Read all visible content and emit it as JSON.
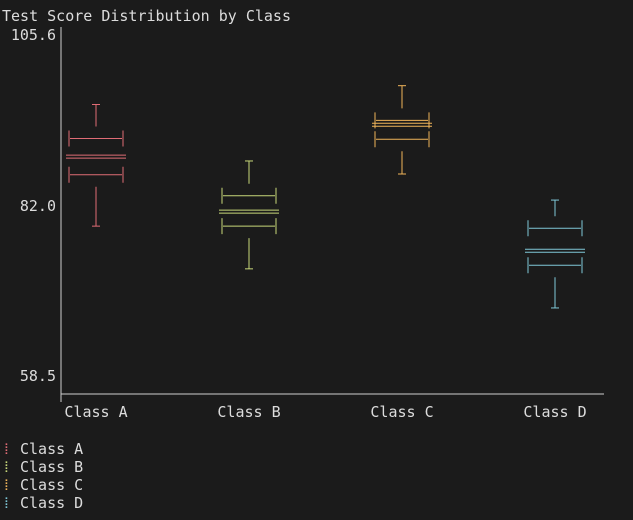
{
  "chart_data": {
    "type": "box",
    "title": "Test Score Distribution by Class",
    "categories": [
      "Class A",
      "Class B",
      "Class C",
      "Class D"
    ],
    "y_ticks": [
      "105.6",
      "82.0",
      "58.5"
    ],
    "ylim": [
      58.5,
      105.6
    ],
    "series": [
      {
        "name": "Class A",
        "color": "#e06c75",
        "min": 79.2,
        "q1": 86.3,
        "median": 88.8,
        "q3": 91.3,
        "max": 96.0
      },
      {
        "name": "Class B",
        "color": "#c8d87a",
        "min": 73.3,
        "q1": 79.2,
        "median": 81.2,
        "q3": 83.4,
        "max": 88.2
      },
      {
        "name": "Class C",
        "color": "#f0b45a",
        "min": 86.4,
        "q1": 91.2,
        "median": 93.2,
        "q3": 93.8,
        "max": 98.6
      },
      {
        "name": "Class D",
        "color": "#7fc8d8",
        "min": 67.9,
        "q1": 73.8,
        "median": 75.8,
        "q3": 78.9,
        "max": 82.8
      }
    ],
    "grid": false,
    "legend": "bottom-left"
  }
}
